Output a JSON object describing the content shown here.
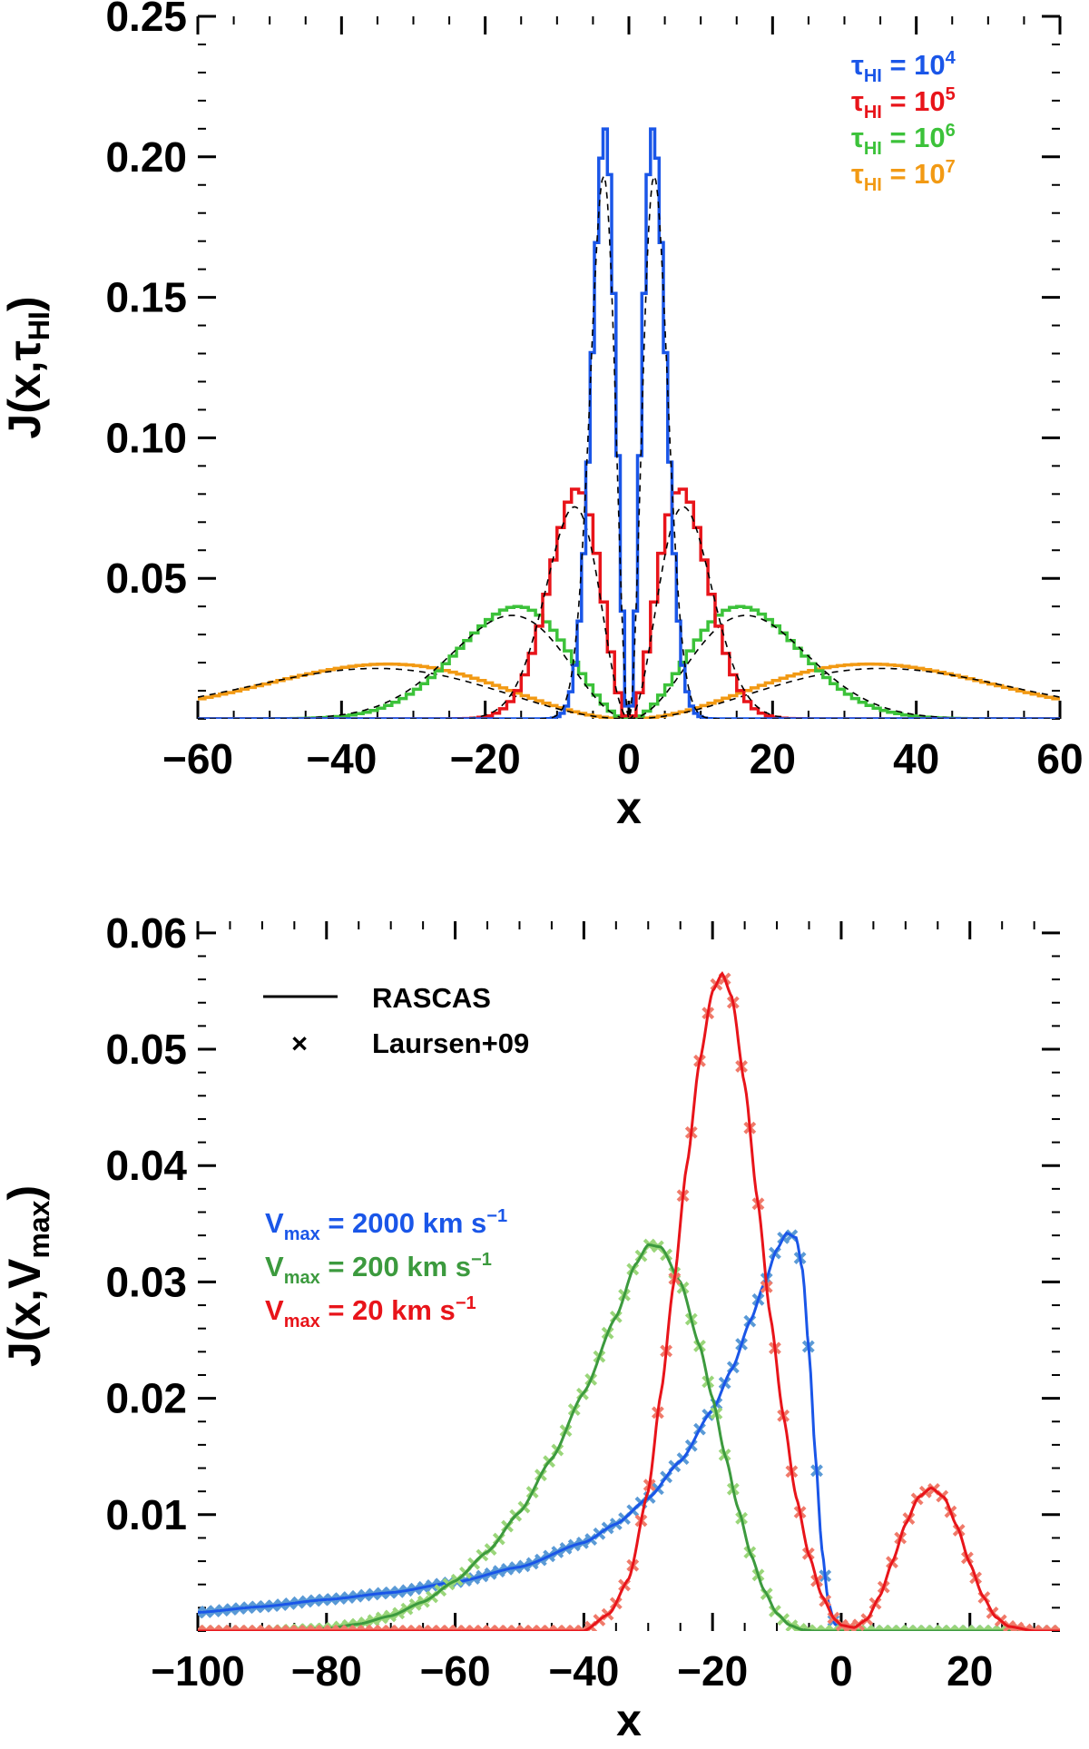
{
  "colors": {
    "blue": "#1a56e8",
    "red": "#e8141a",
    "green": "#3cc23a",
    "orange": "#f29a14",
    "dgreen": "#3c9a3e",
    "lblue": "#5a9ad6",
    "lred": "#f07a6a",
    "lgreen": "#9ad67a",
    "black": "#000000"
  },
  "chart_data": [
    {
      "type": "step",
      "xlim": [
        -60,
        60
      ],
      "ylim": [
        0,
        0.25
      ],
      "xlabel": "x",
      "ylabel": "J(x,τ",
      "ylabel_sub": "HI",
      "ylabel_close": ")",
      "xticks": [
        -60,
        -40,
        -20,
        0,
        20,
        40,
        60
      ],
      "xtick_labels": [
        "−60",
        "−40",
        "−20",
        "0",
        "20",
        "40",
        "60"
      ],
      "yticks": [
        0.05,
        0.1,
        0.15,
        0.2,
        0.25
      ],
      "ytick_labels": [
        "0.05",
        "0.10",
        "0.15",
        "0.20",
        "0.25"
      ],
      "legend": [
        {
          "symbol": "τ",
          "sub": "HI",
          "eq": " = 10",
          "sup": "4",
          "color": "blue"
        },
        {
          "symbol": "τ",
          "sub": "HI",
          "eq": " = 10",
          "sup": "5",
          "color": "red"
        },
        {
          "symbol": "τ",
          "sub": "HI",
          "eq": " = 10",
          "sup": "6",
          "color": "green"
        },
        {
          "symbol": "τ",
          "sub": "HI",
          "eq": " = 10",
          "sup": "7",
          "color": "orange"
        }
      ],
      "series": [
        {
          "name": "τHI = 10^7",
          "color": "orange",
          "peak_x": 33.5,
          "peak_y": 0.0195,
          "hist_bin": 1.0
        },
        {
          "name": "τHI = 10^6",
          "color": "green",
          "peak_x": 15.5,
          "peak_y": 0.04,
          "hist_bin": 1.0
        },
        {
          "name": "τHI = 10^5",
          "color": "red",
          "peak_x": 7.2,
          "peak_y": 0.082,
          "hist_bin": 1.0
        },
        {
          "name": "τHI = 10^4",
          "color": "blue",
          "peak_x": 3.35,
          "peak_y": 0.21,
          "hist_bin": 1.0
        }
      ],
      "analytic_note": "dashed black analytic curves"
    },
    {
      "type": "line+scatter",
      "xlim": [
        -100,
        34
      ],
      "ylim": [
        0,
        0.061
      ],
      "xlabel": "x",
      "ylabel": "J(x,V",
      "ylabel_sub": "max",
      "ylabel_close": ")",
      "xticks": [
        -100,
        -80,
        -60,
        -40,
        -20,
        0,
        20
      ],
      "xtick_labels": [
        "−100",
        "−80",
        "−60",
        "−40",
        "−20",
        "0",
        "20"
      ],
      "yticks": [
        0.01,
        0.02,
        0.03,
        0.04,
        0.05,
        0.06
      ],
      "ytick_labels": [
        "0.01",
        "0.02",
        "0.03",
        "0.04",
        "0.05",
        "0.06"
      ],
      "style_legend": [
        {
          "label": "RASCAS",
          "marker": "line"
        },
        {
          "label": "Laursen+09",
          "marker": "×"
        }
      ],
      "legend": [
        {
          "symbol": "V",
          "sub": "max",
          "eq": " = 2000 km s",
          "sup": "−1",
          "color": "blue"
        },
        {
          "symbol": "V",
          "sub": "max",
          "eq": " = 200 km s",
          "sup": "−1",
          "color": "dgreen"
        },
        {
          "symbol": "V",
          "sub": "max",
          "eq": " = 20 km s",
          "sup": "−1",
          "color": "red"
        }
      ],
      "series": [
        {
          "name": "Vmax = 2000 km s^-1",
          "color": "blue",
          "marker_color": "lblue",
          "x": [
            -100,
            -90,
            -80,
            -70,
            -60,
            -50,
            -40,
            -35,
            -30,
            -25,
            -20,
            -17,
            -14,
            -12,
            -10,
            -8.5,
            -7,
            -6,
            -5,
            -4,
            -3,
            -2,
            -1,
            0,
            2,
            34
          ],
          "y": [
            0.0016,
            0.0021,
            0.0027,
            0.0033,
            0.0042,
            0.0055,
            0.0076,
            0.0092,
            0.0114,
            0.0146,
            0.019,
            0.0225,
            0.0268,
            0.0298,
            0.0328,
            0.0342,
            0.0338,
            0.031,
            0.024,
            0.015,
            0.007,
            0.0025,
            0.0006,
            0.0001,
            0.0,
            0.0
          ]
        },
        {
          "name": "Vmax = 200 km s^-1",
          "color": "dgreen",
          "marker_color": "lgreen",
          "x": [
            -90,
            -80,
            -75,
            -70,
            -65,
            -60,
            -55,
            -50,
            -45,
            -40,
            -35,
            -32,
            -30,
            -28,
            -25,
            -22,
            -20,
            -18,
            -16,
            -14,
            -12,
            -10,
            -8,
            -6,
            -4,
            0,
            34
          ],
          "y": [
            0.0,
            0.0002,
            0.0006,
            0.0013,
            0.0025,
            0.0043,
            0.0068,
            0.0102,
            0.0148,
            0.0205,
            0.027,
            0.0315,
            0.0332,
            0.033,
            0.03,
            0.0245,
            0.02,
            0.015,
            0.0105,
            0.0065,
            0.0035,
            0.0015,
            0.0005,
            0.0001,
            0.0,
            0.0,
            0.0
          ]
        },
        {
          "name": "Vmax = 20 km s^-1",
          "color": "red",
          "marker_color": "lred",
          "x": [
            -50,
            -40,
            -36,
            -33,
            -30,
            -28,
            -26,
            -24,
            -22,
            -20,
            -18.5,
            -17,
            -15,
            -13,
            -11,
            -9,
            -7,
            -5,
            -3,
            -1,
            0,
            2,
            4,
            6,
            8,
            10,
            12,
            14,
            16,
            18,
            20,
            22,
            24,
            26,
            30,
            34
          ],
          "y": [
            0.0,
            0.0,
            0.0015,
            0.0045,
            0.012,
            0.0205,
            0.03,
            0.04,
            0.049,
            0.055,
            0.0565,
            0.0545,
            0.047,
            0.037,
            0.027,
            0.0185,
            0.0115,
            0.0065,
            0.003,
            0.001,
            0.0005,
            0.0003,
            0.001,
            0.003,
            0.006,
            0.0092,
            0.0115,
            0.0123,
            0.0115,
            0.009,
            0.0058,
            0.003,
            0.0012,
            0.0004,
            0.0,
            0.0
          ]
        }
      ]
    }
  ]
}
